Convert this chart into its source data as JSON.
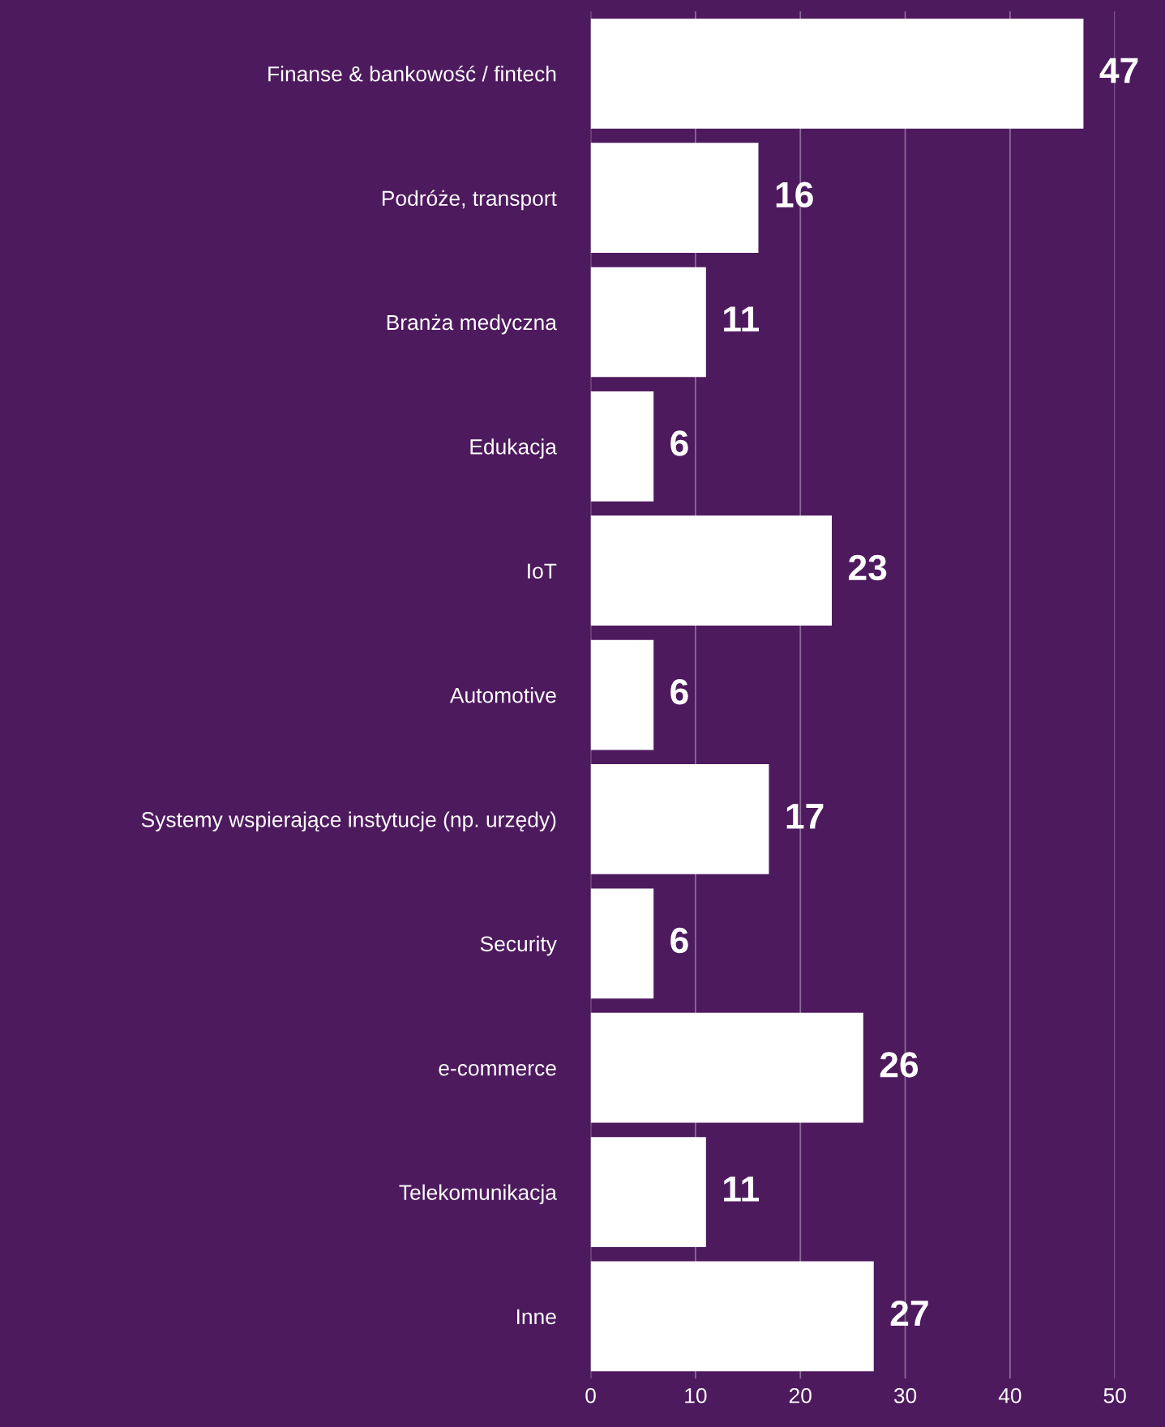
{
  "chart_data": {
    "type": "bar",
    "orientation": "horizontal",
    "categories": [
      "Finanse & bankowość / fintech",
      "Podróże, transport",
      "Branża medyczna",
      "Edukacja",
      "IoT",
      "Automotive",
      "Systemy wspierające instytucje (np. urzędy)",
      "Security",
      "e-commerce",
      "Telekomunikacja",
      "Inne"
    ],
    "values": [
      47,
      16,
      11,
      6,
      23,
      6,
      17,
      6,
      26,
      11,
      27
    ],
    "color": "#ffffff",
    "xlim": [
      0,
      50
    ],
    "xticks": [
      0,
      10,
      20,
      30,
      40,
      50
    ],
    "grid": "x",
    "data_labels": true,
    "legend": false
  }
}
